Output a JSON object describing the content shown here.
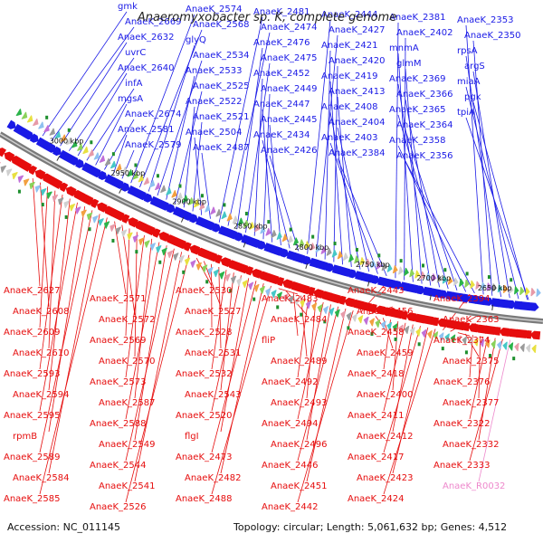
{
  "title": "Anaeromyxobacter sp. K, complete genome",
  "footer": {
    "accession": "Accession: NC_011145",
    "summary": "Topology: circular; Length: 5,061,632 bp; Genes: 4,512"
  },
  "colors": {
    "forward": "#1a1ae6",
    "reverse": "#e60d0d",
    "rna": "#ee88cc",
    "backbone": "#7a7a7a"
  },
  "ticks": [
    "3000 kbp",
    "2950 kbp",
    "2900 kbp",
    "2850 kbp",
    "2800 kbp",
    "2750 kbp",
    "2700 kbp",
    "2650 kbp"
  ],
  "forward_labels": [
    "gmk",
    "AnaeK_2669",
    "AnaeK_2632",
    "uvrC",
    "AnaeK_2640",
    "infA",
    "mgsA",
    "AnaeK_2674",
    "AnaeK_2581",
    "AnaeK_2579",
    "AnaeK_2574",
    "AnaeK_2568",
    "glyQ",
    "AnaeK_2534",
    "AnaeK_2533",
    "AnaeK_2525",
    "AnaeK_2522",
    "AnaeK_2521",
    "AnaeK_2504",
    "AnaeK_2487",
    "AnaeK_2481",
    "AnaeK_2474",
    "AnaeK_2476",
    "AnaeK_2475",
    "AnaeK_2452",
    "AnaeK_2449",
    "AnaeK_2447",
    "AnaeK_2445",
    "AnaeK_2434",
    "AnaeK_2426",
    "AnaeK_2444",
    "AnaeK_2427",
    "AnaeK_2421",
    "AnaeK_2420",
    "AnaeK_2419",
    "AnaeK_2413",
    "AnaeK_2408",
    "AnaeK_2404",
    "AnaeK_2403",
    "AnaeK_2384",
    "AnaeK_2381",
    "AnaeK_2402",
    "mnmA",
    "glmM",
    "AnaeK_2369",
    "AnaeK_2366",
    "AnaeK_2365",
    "AnaeK_2364",
    "AnaeK_2358",
    "AnaeK_2356",
    "AnaeK_2353",
    "AnaeK_2350",
    "rpsA",
    "argS",
    "miaA",
    "pgk",
    "tpiA"
  ],
  "reverse_labels": [
    "AnaeK_2627",
    "AnaeK_2608",
    "AnaeK_2609",
    "AnaeK_2610",
    "AnaeK_2593",
    "AnaeK_2594",
    "AnaeK_2595",
    "rpmB",
    "AnaeK_2589",
    "AnaeK_2584",
    "AnaeK_2585",
    "AnaeK_2571",
    "AnaeK_2572",
    "AnaeK_2569",
    "AnaeK_2570",
    "AnaeK_2573",
    "AnaeK_2587",
    "AnaeK_2588",
    "AnaeK_2549",
    "AnaeK_2544",
    "AnaeK_2541",
    "AnaeK_2526",
    "AnaeK_2530",
    "AnaeK_2527",
    "AnaeK_2528",
    "AnaeK_2531",
    "AnaeK_2532",
    "AnaeK_2543",
    "AnaeK_2520",
    "flgI",
    "AnaeK_2473",
    "AnaeK_2482",
    "AnaeK_2488",
    "AnaeK_2483",
    "AnaeK_2484",
    "fliP",
    "AnaeK_2489",
    "AnaeK_2492",
    "AnaeK_2493",
    "AnaeK_2494",
    "AnaeK_2496",
    "AnaeK_2446",
    "AnaeK_2451",
    "AnaeK_2442",
    "AnaeK_2443",
    "AnaeK_2456",
    "AnaeK_2458",
    "AnaeK_2459",
    "AnaeK_2418",
    "AnaeK_2400",
    "AnaeK_2411",
    "AnaeK_2412",
    "AnaeK_2417",
    "AnaeK_2423",
    "AnaeK_2424",
    "AnaeK_2394",
    "AnaeK_2363",
    "AnaeK_2374",
    "AnaeK_2375",
    "AnaeK_2376",
    "AnaeK_2377",
    "AnaeK_2322",
    "AnaeK_2332",
    "AnaeK_2333",
    "AnaeK_R0032"
  ]
}
